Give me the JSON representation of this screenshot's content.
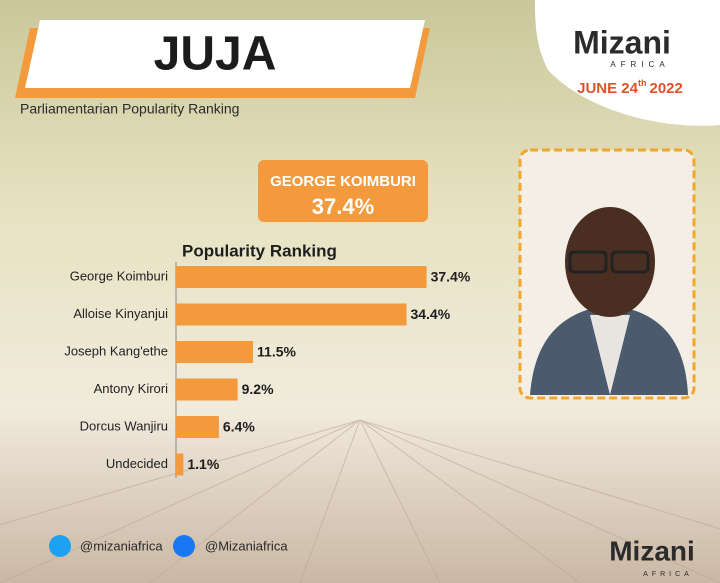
{
  "header": {
    "title": "JUJA",
    "subtitle": "Parliamentarian Popularity Ranking"
  },
  "logo": {
    "brand": "Mizani",
    "tagline": "AFRICA",
    "date": {
      "day": "JUNE 24",
      "suffix": "th",
      "year": "2022"
    }
  },
  "highlight": {
    "name": "GEORGE KOIMBURI",
    "value": "37.4%"
  },
  "chart_data": {
    "type": "bar",
    "orientation": "horizontal",
    "title": "Popularity Ranking",
    "categories": [
      "George Koimburi",
      "Alloise Kinyanjui",
      "Joseph Kang'ethe",
      "Antony Kirori",
      "Dorcus Wanjiru",
      "Undecided"
    ],
    "values": [
      37.4,
      34.4,
      11.5,
      9.2,
      6.4,
      1.1
    ],
    "value_labels": [
      "37.4%",
      "34.4%",
      "11.5%",
      "9.2%",
      "6.4%",
      "1.1%"
    ],
    "color": "#f39a3c"
  },
  "social": {
    "twitter": "@mizaniafrica",
    "facebook": "@Mizaniafrica"
  },
  "footer_logo": {
    "brand": "Mizani",
    "tagline": "AFRICA"
  }
}
